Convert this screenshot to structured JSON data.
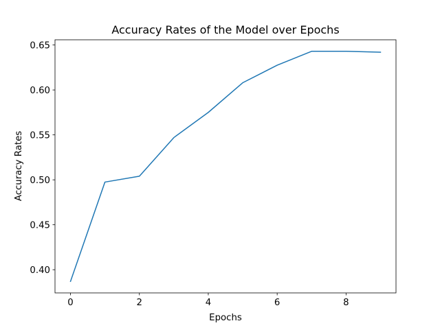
{
  "chart_data": {
    "type": "line",
    "title": "Accuracy Rates of the Model over Epochs",
    "xlabel": "Epochs",
    "ylabel": "Accuracy Rates",
    "x": [
      0,
      1,
      2,
      3,
      4,
      5,
      6,
      7,
      8,
      9
    ],
    "series": [
      {
        "values": [
          0.387,
          0.4975,
          0.504,
          0.547,
          0.575,
          0.608,
          0.6275,
          0.643,
          0.643,
          0.642
        ],
        "color": "#1f77b4"
      }
    ],
    "xlim": [
      -0.45,
      9.45
    ],
    "ylim": [
      0.3742,
      0.6558
    ],
    "xticks": [
      0,
      2,
      4,
      6,
      8
    ],
    "xtick_labels": [
      "0",
      "2",
      "4",
      "6",
      "8"
    ],
    "yticks": [
      0.4,
      0.45,
      0.5,
      0.55,
      0.6,
      0.65
    ],
    "ytick_labels": [
      "0.40",
      "0.45",
      "0.50",
      "0.55",
      "0.60",
      "0.65"
    ],
    "grid": false,
    "legend": "none"
  }
}
